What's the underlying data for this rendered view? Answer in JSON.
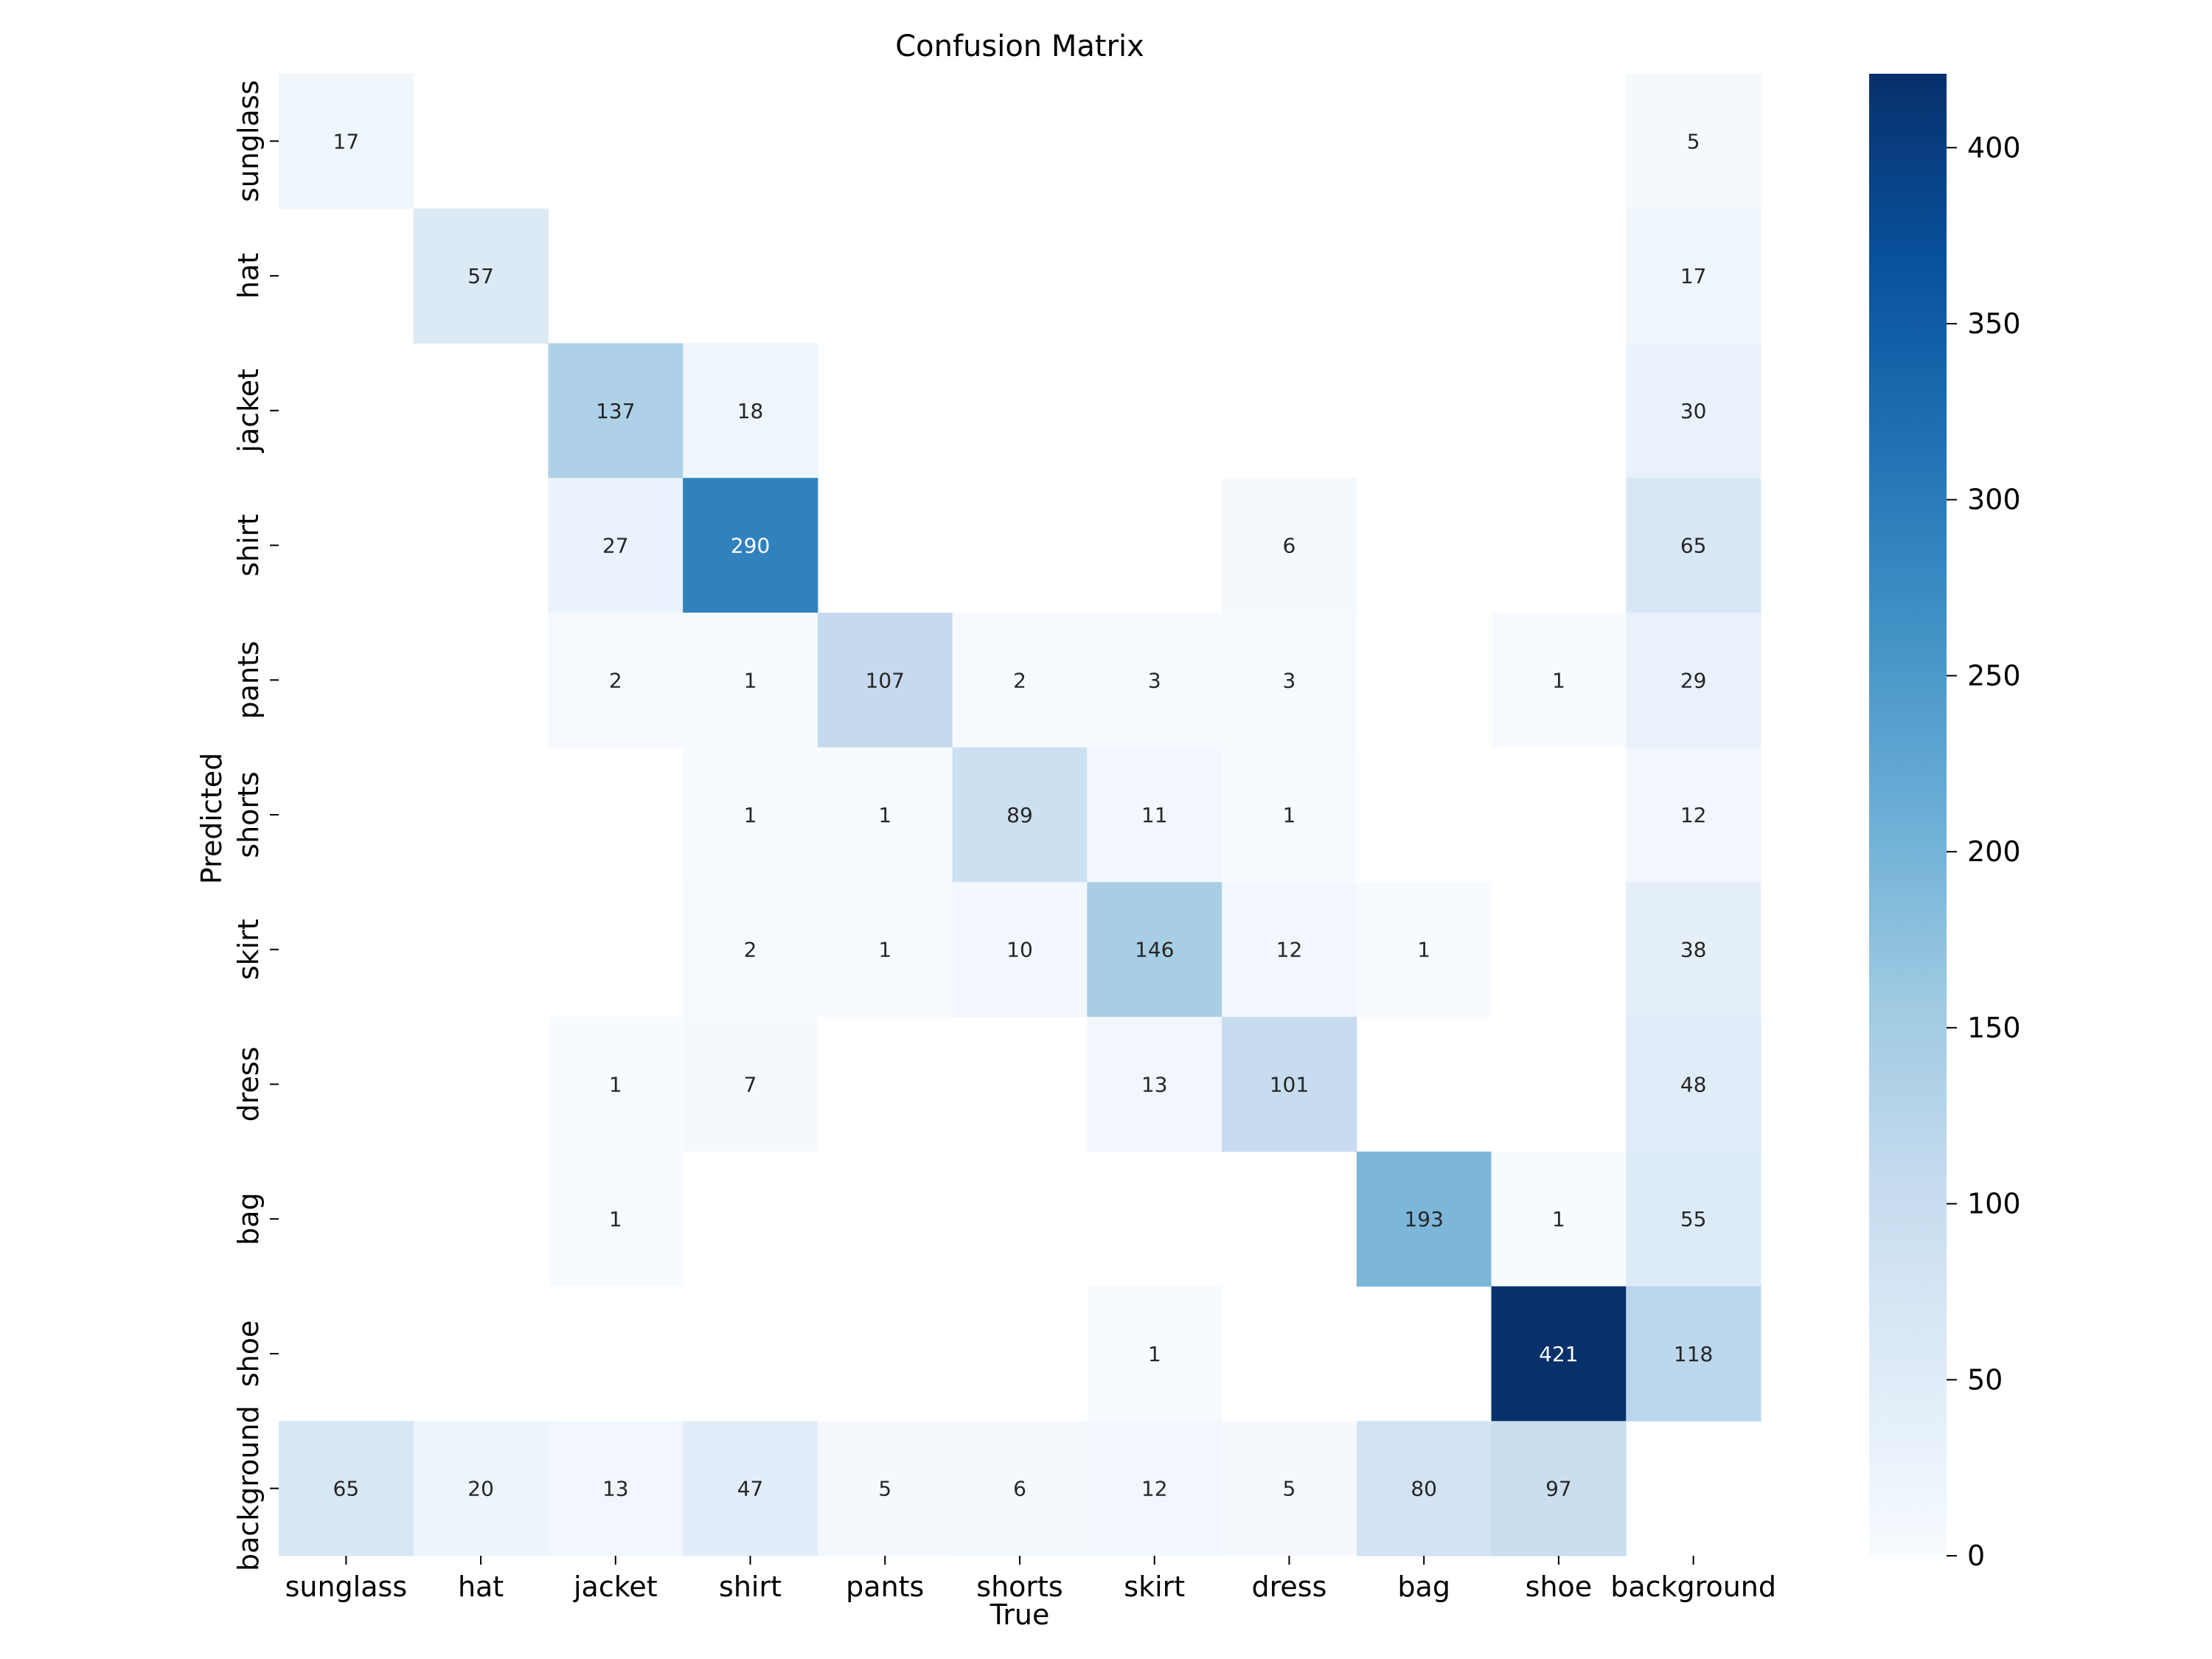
{
  "chart_data": {
    "type": "heatmap",
    "title": "Confusion Matrix",
    "xlabel": "True",
    "ylabel": "Predicted",
    "x_categories": [
      "sunglass",
      "hat",
      "jacket",
      "shirt",
      "pants",
      "shorts",
      "skirt",
      "dress",
      "bag",
      "shoe",
      "background"
    ],
    "y_categories": [
      "sunglass",
      "hat",
      "jacket",
      "shirt",
      "pants",
      "shorts",
      "skirt",
      "dress",
      "bag",
      "shoe",
      "background"
    ],
    "values": [
      [
        17,
        null,
        null,
        null,
        null,
        null,
        null,
        null,
        null,
        null,
        5
      ],
      [
        null,
        57,
        null,
        null,
        null,
        null,
        null,
        null,
        null,
        null,
        17
      ],
      [
        null,
        null,
        137,
        18,
        null,
        null,
        null,
        null,
        null,
        null,
        30
      ],
      [
        null,
        null,
        27,
        290,
        null,
        null,
        null,
        6,
        null,
        null,
        65
      ],
      [
        null,
        null,
        2,
        1,
        107,
        2,
        3,
        3,
        null,
        1,
        29
      ],
      [
        null,
        null,
        null,
        1,
        1,
        89,
        11,
        1,
        null,
        null,
        12
      ],
      [
        null,
        null,
        null,
        2,
        1,
        10,
        146,
        12,
        1,
        null,
        38
      ],
      [
        null,
        null,
        1,
        7,
        null,
        null,
        13,
        101,
        null,
        null,
        48
      ],
      [
        null,
        null,
        1,
        null,
        null,
        null,
        null,
        null,
        193,
        1,
        55
      ],
      [
        null,
        null,
        null,
        null,
        null,
        null,
        1,
        null,
        null,
        421,
        118
      ],
      [
        65,
        20,
        13,
        47,
        5,
        6,
        12,
        5,
        80,
        97,
        null
      ]
    ],
    "colormap": "Blues",
    "color_range": [
      0,
      421
    ],
    "colorbar_ticks": [
      0,
      50,
      100,
      150,
      200,
      250,
      300,
      350,
      400
    ],
    "colorbar_tick_labels": [
      "0",
      "50",
      "100",
      "150",
      "200",
      "250",
      "300",
      "350",
      "400"
    ],
    "empty_cells": "blank"
  }
}
